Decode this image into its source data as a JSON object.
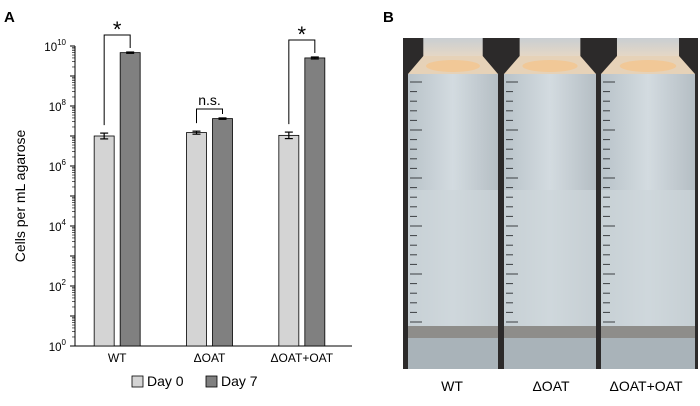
{
  "panels": {
    "a": "A",
    "b": "B"
  },
  "chart_data": {
    "type": "bar",
    "yscale": "log",
    "ylabel": "Cells per mL agarose",
    "ylim_exponent": [
      0,
      10
    ],
    "ytick_exponents": [
      0,
      2,
      4,
      6,
      8,
      10
    ],
    "ytick_base": "10",
    "categories": [
      "WT",
      "ΔOAT",
      "ΔOAT+OAT"
    ],
    "series": [
      {
        "name": "Day 0",
        "color": "#d4d4d4",
        "values": [
          10000000.0,
          13000000.0,
          10500000.0
        ],
        "error_low": [
          8000000.0,
          11500000.0,
          8200000.0
        ],
        "error_high": [
          12500000.0,
          14500000.0,
          13500000.0
        ]
      },
      {
        "name": "Day 7",
        "color": "#808080",
        "values": [
          6000000000.0,
          38000000.0,
          4000000000.0
        ],
        "error_low": [
          5700000000.0,
          36000000.0,
          3700000000.0
        ],
        "error_high": [
          6300000000.0,
          40000000.0,
          4300000000.0
        ]
      }
    ],
    "significance": [
      {
        "category": 0,
        "label": "*"
      },
      {
        "category": 1,
        "label": "n.s."
      },
      {
        "category": 2,
        "label": "*"
      }
    ],
    "legend_position": "bottom",
    "grid": false
  },
  "photo": {
    "labels": [
      "WT",
      "ΔOAT",
      "ΔOAT+OAT"
    ]
  }
}
